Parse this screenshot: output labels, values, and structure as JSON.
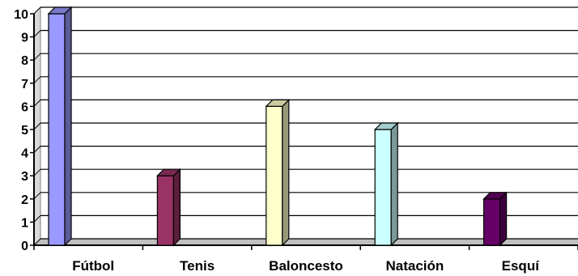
{
  "chart_data": {
    "type": "bar",
    "categories": [
      "Fútbol",
      "Tenis",
      "Baloncesto",
      "Natación",
      "Esquí"
    ],
    "values": [
      10,
      3,
      6,
      5,
      2
    ],
    "colors": [
      "#9999ff",
      "#993366",
      "#ffffcc",
      "#ccffff",
      "#660066"
    ],
    "y_ticks": [
      "0",
      "1",
      "2",
      "3",
      "4",
      "5",
      "6",
      "7",
      "8",
      "9",
      "10"
    ],
    "ylim": [
      0,
      10
    ],
    "grid": true,
    "style": "3d-bars"
  }
}
